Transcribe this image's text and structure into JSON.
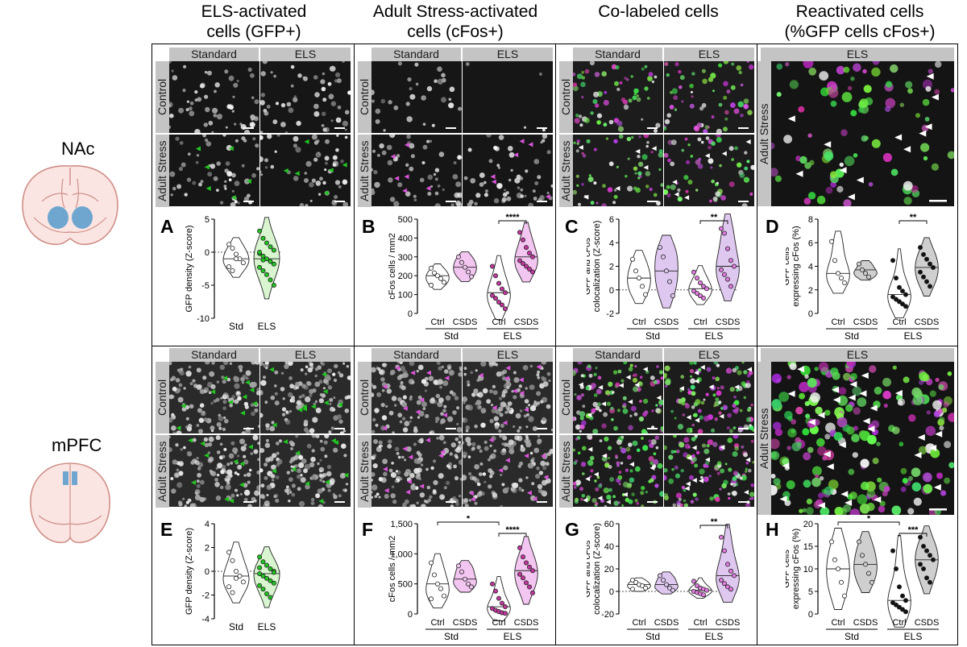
{
  "columns": [
    {
      "title": "ELS-activated\ncells (GFP+)"
    },
    {
      "title": "Adult Stress-activated\ncells (cFos+)"
    },
    {
      "title": "Co-labeled cells"
    },
    {
      "title": "Reactivated cells\n(%GFP cells cFos+)"
    }
  ],
  "regions": {
    "top": "NAc",
    "bottom": "mPFC"
  },
  "conditions": {
    "standard": "Standard",
    "els": "ELS",
    "control": "Control",
    "adult_stress": "Adult Stress"
  },
  "colors": {
    "gfp": "#22c522",
    "cfos": "#d955d9",
    "cfos_fill": "#f2c6f0",
    "gfp_fill": "#d8f5d0",
    "gray_fill": "#cfcfcf",
    "brain_fill": "#fbe5e2",
    "brain_line": "#cf8f88",
    "nac_blue": "#6fa6cf"
  },
  "panel_letters": [
    "A",
    "B",
    "C",
    "D",
    "E",
    "F",
    "G",
    "H"
  ],
  "chart_data": [
    {
      "type": "violin",
      "panel": "A",
      "ylabel": "GFP density (Z-score)",
      "ylim": [
        -10,
        5
      ],
      "yticks": [
        -10,
        -5,
        0,
        5
      ],
      "categories": [
        "Std",
        "ELS"
      ],
      "series": [
        {
          "values": [
            1.2,
            0.6,
            -0.3,
            -1.0,
            -1.6,
            -2.2,
            -2.8,
            -1.0
          ]
        },
        {
          "values": [
            3.2,
            2.1,
            1.4,
            0.8,
            0.3,
            -0.2,
            -0.6,
            -1.0,
            -1.4,
            -1.8,
            -2.3,
            -2.8,
            -3.4,
            -4.2,
            -5.0,
            0.0,
            -1.2
          ]
        }
      ]
    },
    {
      "type": "violin",
      "panel": "B",
      "ylabel": "cFos cells / mm2",
      "ylim": [
        0,
        500
      ],
      "yticks": [
        0,
        100,
        200,
        300,
        400,
        500
      ],
      "categories": [
        "Ctrl",
        "CSDS",
        "Ctrl",
        "CSDS"
      ],
      "groups": [
        "Std",
        "ELS"
      ],
      "significance": [
        {
          "from": 2,
          "to": 3,
          "label": "****"
        }
      ],
      "series": [
        {
          "values": [
            240,
            215,
            200,
            185,
            165,
            150
          ]
        },
        {
          "values": [
            300,
            270,
            245,
            220,
            195
          ]
        },
        {
          "values": [
            250,
            200,
            160,
            130,
            110,
            95,
            80,
            60,
            45,
            25
          ]
        },
        {
          "values": [
            430,
            390,
            350,
            320,
            300,
            280,
            265,
            250,
            235,
            220
          ]
        }
      ]
    },
    {
      "type": "violin",
      "panel": "C",
      "ylabel": "GFP and cFos colocalization (Z-score)",
      "ylim": [
        -2,
        6
      ],
      "yticks": [
        -2,
        0,
        2,
        4,
        6
      ],
      "categories": [
        "Ctrl",
        "CSDS",
        "Ctrl",
        "CSDS"
      ],
      "groups": [
        "Std",
        "ELS"
      ],
      "significance": [
        {
          "from": 2,
          "to": 3,
          "label": "**"
        }
      ],
      "series": [
        {
          "values": [
            2.6,
            1.6,
            1.0,
            0.3,
            -0.4
          ]
        },
        {
          "values": [
            3.6,
            2.8,
            1.6,
            0.7,
            -0.5
          ]
        },
        {
          "values": [
            1.5,
            1.0,
            0.6,
            0.3,
            0.1,
            -0.1,
            -0.3,
            -0.5,
            -0.7
          ]
        },
        {
          "values": [
            5.2,
            4.8,
            3.5,
            2.5,
            2.0,
            1.7,
            1.3,
            0.9,
            0.3
          ]
        }
      ]
    },
    {
      "type": "violin",
      "panel": "D",
      "ylabel": "GFP cells expressing cFos (%)",
      "ylim": [
        0,
        8
      ],
      "yticks": [
        0,
        2,
        4,
        6,
        8
      ],
      "categories": [
        "Ctrl",
        "CSDS",
        "Ctrl",
        "CSDS"
      ],
      "groups": [
        "Std",
        "ELS"
      ],
      "significance": [
        {
          "from": 2,
          "to": 3,
          "label": "**"
        }
      ],
      "series": [
        {
          "values": [
            6.1,
            4.5,
            3.4,
            3.0,
            2.6
          ]
        },
        {
          "values": [
            4.2,
            3.7,
            3.4,
            3.1
          ]
        },
        {
          "values": [
            4.5,
            3.0,
            2.2,
            1.9,
            1.6,
            1.4,
            1.2,
            1.0,
            0.8,
            0.6
          ]
        },
        {
          "values": [
            5.6,
            5.0,
            4.6,
            4.2,
            3.9,
            3.5,
            3.1,
            2.7,
            2.3
          ]
        }
      ]
    },
    {
      "type": "violin",
      "panel": "E",
      "ylabel": "GFP density (Z-score)",
      "ylim": [
        -4,
        4
      ],
      "yticks": [
        -4,
        -2,
        0,
        2,
        4
      ],
      "categories": [
        "Std",
        "ELS"
      ],
      "series": [
        {
          "values": [
            1.6,
            0.9,
            0.0,
            -0.4,
            -0.9,
            -1.3,
            -1.8,
            -0.6
          ]
        },
        {
          "values": [
            1.2,
            0.8,
            0.5,
            0.2,
            0.0,
            -0.2,
            -0.4,
            -0.6,
            -0.8,
            -1.0,
            -1.2,
            -1.5,
            -1.9,
            -2.2,
            -0.1,
            0.3
          ]
        }
      ]
    },
    {
      "type": "violin",
      "panel": "F",
      "ylabel": "cFos cells / mm2",
      "ylim": [
        0,
        1500
      ],
      "yticks": [
        0,
        500,
        1000,
        1500
      ],
      "ytick_labels": [
        "0",
        "500",
        "1,000",
        "1,500"
      ],
      "categories": [
        "Ctrl",
        "CSDS",
        "Ctrl",
        "CSDS"
      ],
      "groups": [
        "Std",
        "ELS"
      ],
      "significance": [
        {
          "from": 0,
          "to": 2,
          "label": "*"
        },
        {
          "from": 2,
          "to": 3,
          "label": "****"
        }
      ],
      "series": [
        {
          "values": [
            850,
            650,
            500,
            420,
            300,
            250
          ]
        },
        {
          "values": [
            800,
            700,
            580,
            500,
            450
          ]
        },
        {
          "values": [
            500,
            380,
            260,
            180,
            120,
            90,
            60,
            40,
            20,
            10
          ]
        },
        {
          "values": [
            1100,
            950,
            850,
            780,
            720,
            660,
            600,
            520,
            450,
            350
          ]
        }
      ]
    },
    {
      "type": "violin",
      "panel": "G",
      "ylabel": "GFP and cFos colocalization (Z-score)",
      "ylim": [
        -20,
        60
      ],
      "yticks": [
        -20,
        0,
        20,
        40,
        60
      ],
      "categories": [
        "Ctrl",
        "CSDS",
        "Ctrl",
        "CSDS"
      ],
      "groups": [
        "Std",
        "ELS"
      ],
      "significance": [
        {
          "from": 2,
          "to": 3,
          "label": "**"
        }
      ],
      "series": [
        {
          "values": [
            10,
            8,
            6,
            5,
            3,
            2
          ]
        },
        {
          "values": [
            14,
            10,
            6,
            3,
            1
          ]
        },
        {
          "values": [
            9,
            5,
            3,
            2,
            1,
            0,
            -1,
            -2,
            -3
          ]
        },
        {
          "values": [
            48,
            36,
            24,
            18,
            14,
            10,
            7,
            4,
            2
          ]
        }
      ]
    },
    {
      "type": "violin",
      "panel": "H",
      "ylabel": "GFP cells expressing cFos (%)",
      "ylim": [
        0,
        20
      ],
      "yticks": [
        0,
        5,
        10,
        15,
        20
      ],
      "categories": [
        "Ctrl",
        "CSDS",
        "Ctrl",
        "CSDS"
      ],
      "groups": [
        "Std",
        "ELS"
      ],
      "significance": [
        {
          "from": 0,
          "to": 2,
          "label": "*"
        },
        {
          "from": 2,
          "to": 3,
          "label": "***"
        }
      ],
      "series": [
        {
          "values": [
            16,
            12,
            10,
            7,
            4
          ]
        },
        {
          "values": [
            16,
            13,
            11,
            9,
            7
          ]
        },
        {
          "values": [
            14,
            10,
            6,
            4,
            3,
            2.5,
            2,
            1.5,
            1,
            0.5
          ]
        },
        {
          "values": [
            17,
            15,
            14,
            13,
            12,
            11,
            10,
            8,
            7
          ]
        }
      ]
    }
  ]
}
